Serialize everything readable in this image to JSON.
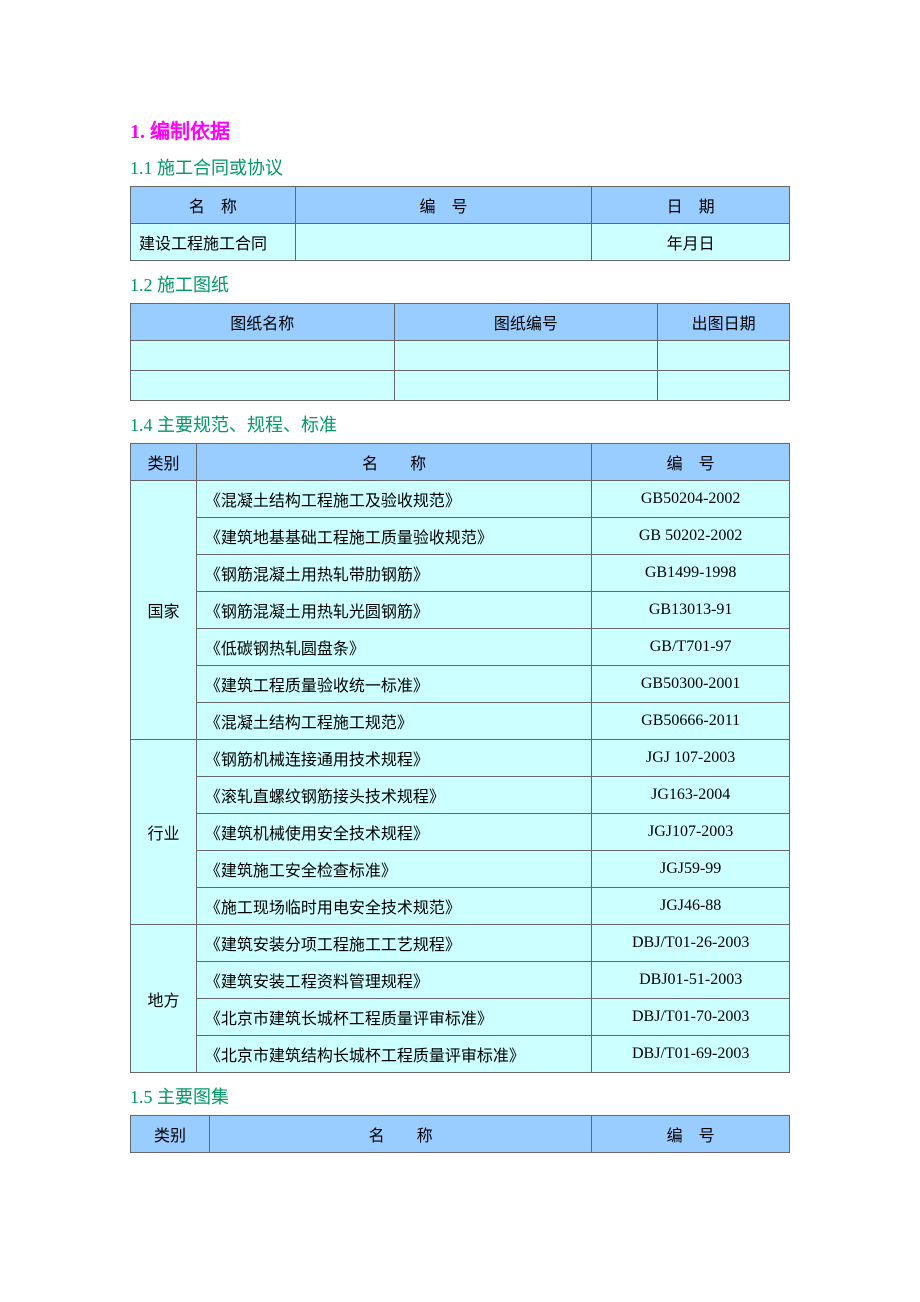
{
  "section1": {
    "title": "1. 编制依据",
    "sub1": {
      "title": "1.1 施工合同或协议",
      "headers": [
        "名　称",
        "编　号",
        "日　期"
      ],
      "rows": [
        [
          "建设工程施工合同",
          "",
          "年月日"
        ]
      ]
    },
    "sub2": {
      "title": "1.2 施工图纸",
      "headers": [
        "图纸名称",
        "图纸编号",
        "出图日期"
      ],
      "rows": [
        [
          "",
          "",
          ""
        ],
        [
          "",
          "",
          ""
        ]
      ]
    },
    "sub4": {
      "title": "1.4 主要规范、规程、标准",
      "headers": [
        "类别",
        "名　　称",
        "编　号"
      ],
      "groups": [
        {
          "category": "国家",
          "items": [
            {
              "name": "《混凝土结构工程施工及验收规范》",
              "code": "GB50204-2002"
            },
            {
              "name": "《建筑地基基础工程施工质量验收规范》",
              "code": "GB 50202-2002"
            },
            {
              "name": "《钢筋混凝土用热轧带肋钢筋》",
              "code": "GB1499-1998"
            },
            {
              "name": "《钢筋混凝土用热轧光圆钢筋》",
              "code": "GB13013-91"
            },
            {
              "name": "《低碳钢热轧圆盘条》",
              "code": "GB/T701-97"
            },
            {
              "name": "《建筑工程质量验收统一标准》",
              "code": "GB50300-2001"
            },
            {
              "name": "《混凝土结构工程施工规范》",
              "code": "GB50666-2011"
            }
          ]
        },
        {
          "category": "行业",
          "items": [
            {
              "name": "《钢筋机械连接通用技术规程》",
              "code": "JGJ 107-2003"
            },
            {
              "name": "《滚轧直螺纹钢筋接头技术规程》",
              "code": "JG163-2004"
            },
            {
              "name": "《建筑机械使用安全技术规程》",
              "code": "JGJ107-2003"
            },
            {
              "name": "《建筑施工安全检查标准》",
              "code": "JGJ59-99"
            },
            {
              "name": "《施工现场临时用电安全技术规范》",
              "code": "JGJ46-88"
            }
          ]
        },
        {
          "category": "地方",
          "items": [
            {
              "name": "《建筑安装分项工程施工工艺规程》",
              "code": "DBJ/T01-26-2003"
            },
            {
              "name": "《建筑安装工程资料管理规程》",
              "code": "DBJ01-51-2003"
            },
            {
              "name": "《北京市建筑长城杯工程质量评审标准》",
              "code": "DBJ/T01-70-2003"
            },
            {
              "name": "《北京市建筑结构长城杯工程质量评审标准》",
              "code": "DBJ/T01-69-2003"
            }
          ]
        }
      ]
    },
    "sub5": {
      "title": "1.5 主要图集",
      "headers": [
        "类别",
        "名　　称",
        "编　号"
      ]
    }
  },
  "colors": {
    "h1": "#ff00ff",
    "h2": "#009966",
    "th_bg": "#99ccff",
    "td_bg": "#ccffff",
    "border": "#666666"
  }
}
